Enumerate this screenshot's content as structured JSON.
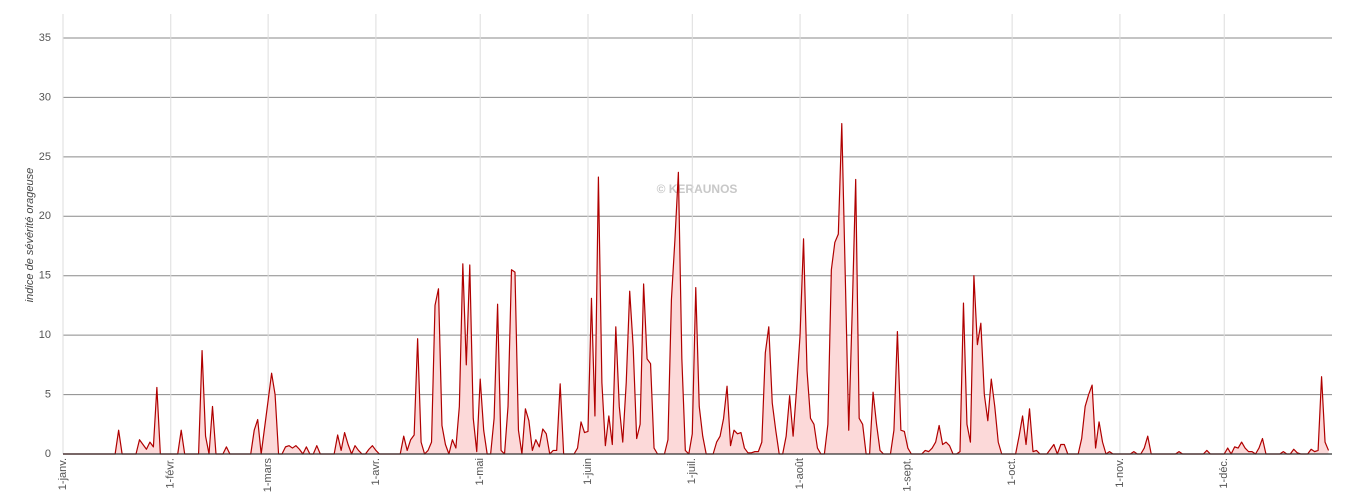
{
  "chart_data": {
    "type": "area",
    "y_label": "indice de sévérité orageuse",
    "watermark": "© KERAUNOS",
    "x": [
      0,
      15,
      16,
      17,
      21,
      22,
      23,
      24,
      25,
      26,
      27,
      28,
      33,
      34,
      35,
      39,
      40,
      41,
      42,
      43,
      44,
      46,
      47,
      48,
      54,
      55,
      56,
      57,
      59,
      60,
      61,
      62,
      63,
      64,
      65,
      66,
      67,
      68,
      69,
      70,
      71,
      72,
      73,
      74,
      78,
      79,
      80,
      81,
      82,
      83,
      84,
      85,
      86,
      87,
      88,
      89,
      90,
      91,
      97,
      98,
      99,
      100,
      101,
      102,
      103,
      104,
      105,
      106,
      107,
      108,
      109,
      110,
      111,
      112,
      113,
      114,
      115,
      116,
      117,
      118,
      119,
      120,
      121,
      122,
      123,
      124,
      125,
      126,
      127,
      128,
      129,
      130,
      131,
      132,
      133,
      134,
      135,
      136,
      137,
      138,
      139,
      140,
      141,
      142,
      143,
      144,
      147,
      148,
      149,
      150,
      151,
      152,
      153,
      154,
      155,
      156,
      157,
      158,
      159,
      160,
      161,
      162,
      163,
      164,
      165,
      166,
      167,
      168,
      169,
      170,
      171,
      173,
      174,
      175,
      176,
      177,
      178,
      179,
      180,
      181,
      182,
      183,
      184,
      185,
      187,
      188,
      189,
      190,
      191,
      192,
      193,
      194,
      195,
      196,
      197,
      198,
      199,
      200,
      201,
      202,
      203,
      204,
      205,
      206,
      207,
      208,
      209,
      210,
      211,
      212,
      213,
      214,
      215,
      216,
      217,
      218,
      219,
      220,
      221,
      222,
      223,
      224,
      225,
      226,
      227,
      228,
      229,
      230,
      231,
      232,
      233,
      234,
      235,
      236,
      238,
      239,
      240,
      241,
      242,
      243,
      244,
      247,
      248,
      249,
      250,
      251,
      252,
      253,
      254,
      255,
      256,
      257,
      258,
      259,
      260,
      261,
      262,
      263,
      264,
      265,
      266,
      267,
      268,
      269,
      270,
      274,
      275,
      276,
      277,
      278,
      279,
      280,
      281,
      283,
      284,
      285,
      286,
      287,
      288,
      289,
      292,
      293,
      294,
      295,
      296,
      297,
      298,
      299,
      300,
      301,
      302,
      307,
      308,
      309,
      310,
      311,
      312,
      313,
      320,
      321,
      322,
      328,
      329,
      330,
      334,
      335,
      336,
      337,
      338,
      339,
      340,
      341,
      342,
      343,
      344,
      345,
      346,
      350,
      351,
      352,
      353,
      354,
      355,
      356,
      358,
      359,
      360,
      361,
      362,
      363,
      364
    ],
    "series": [
      {
        "color": "#b00000",
        "fill": "#fcd9d9",
        "values": [
          0,
          0,
          2,
          0,
          0,
          1.2,
          0.8,
          0.4,
          1,
          0.6,
          5.6,
          0,
          0,
          2,
          0,
          0,
          8.7,
          1.5,
          0,
          4,
          0,
          0,
          0.6,
          0,
          0,
          2,
          2.9,
          0,
          4.5,
          6.8,
          5,
          0,
          0,
          0.6,
          0.7,
          0.5,
          0.7,
          0.4,
          0,
          0.6,
          0,
          0,
          0.7,
          0,
          0,
          1.6,
          0.3,
          1.8,
          0.8,
          0,
          0.7,
          0.3,
          0,
          0,
          0.4,
          0.7,
          0.3,
          0,
          0,
          1.5,
          0.3,
          1.2,
          1.6,
          9.7,
          1,
          0,
          0.3,
          1,
          12.5,
          13.9,
          2.4,
          0.8,
          0,
          1.2,
          0.5,
          4,
          16,
          7.5,
          15.9,
          3,
          0.2,
          6.3,
          2,
          0,
          0,
          3,
          12.6,
          0.3,
          0,
          4,
          15.5,
          15.3,
          2,
          0,
          3.8,
          2.8,
          0.3,
          1.2,
          0.6,
          2.1,
          1.7,
          0,
          0.3,
          0.3,
          5.9,
          0,
          0,
          0.5,
          2.7,
          1.8,
          1.9,
          13.1,
          3.2,
          23.3,
          6,
          0.7,
          3.2,
          0.8,
          10.7,
          4,
          1,
          6,
          13.7,
          9,
          1.3,
          2.5,
          14.3,
          8,
          7.6,
          0.5,
          0,
          0,
          1.2,
          13,
          18,
          23.7,
          8,
          0.3,
          0,
          1.7,
          14,
          4,
          1.5,
          0,
          0,
          1,
          1.5,
          3,
          5.7,
          0.7,
          2,
          1.7,
          1.8,
          0.5,
          0.1,
          0.1,
          0.2,
          0.2,
          1,
          8.5,
          10.7,
          4.3,
          2,
          0,
          0,
          1.5,
          4.9,
          1.5,
          5.5,
          10,
          18.1,
          7,
          3,
          2.5,
          0.5,
          0,
          0,
          2.5,
          15.5,
          17.8,
          18.5,
          27.8,
          15,
          2,
          12,
          23.1,
          3,
          2.5,
          0,
          0,
          5.2,
          2.5,
          0.3,
          0,
          0,
          2,
          10.3,
          2,
          1.9,
          0.5,
          0,
          0,
          0.3,
          0.2,
          0.5,
          1,
          2.4,
          0.8,
          1,
          0.7,
          0,
          0,
          0.2,
          12.7,
          2.5,
          1,
          15,
          9.2,
          11,
          5,
          2.8,
          6.3,
          4,
          1,
          0,
          0,
          1.5,
          3.2,
          0.8,
          3.8,
          0.2,
          0.3,
          0,
          0,
          0.4,
          0.8,
          0,
          0.8,
          0.8,
          0,
          0,
          1.3,
          4,
          5,
          5.8,
          0.5,
          2.7,
          1,
          0,
          0.2,
          0,
          0,
          0.2,
          0,
          0,
          0.5,
          1.5,
          0,
          0,
          0.2,
          0,
          0,
          0.3,
          0,
          0,
          0.5,
          0,
          0.6,
          0.5,
          1,
          0.5,
          0.2,
          0.2,
          0,
          0.5,
          1.3,
          0,
          0,
          0.2,
          0,
          0,
          0.4,
          0.1,
          0,
          0,
          0.4,
          0.2,
          0.3,
          6.5,
          1,
          0.3
        ]
      }
    ],
    "xlim": [
      0,
      365
    ],
    "xticks": [
      {
        "value": 0,
        "label": "1-janv."
      },
      {
        "value": 31,
        "label": "1-févr."
      },
      {
        "value": 59,
        "label": "1-mars"
      },
      {
        "value": 90,
        "label": "1-avr."
      },
      {
        "value": 120,
        "label": "1-mai"
      },
      {
        "value": 151,
        "label": "1-juin"
      },
      {
        "value": 181,
        "label": "1-juil."
      },
      {
        "value": 212,
        "label": "1-août"
      },
      {
        "value": 243,
        "label": "1-sept."
      },
      {
        "value": 273,
        "label": "1-oct."
      },
      {
        "value": 304,
        "label": "1-nov."
      },
      {
        "value": 334,
        "label": "1-déc."
      }
    ],
    "ylim": [
      0,
      35
    ],
    "yticks": [
      0,
      5,
      10,
      15,
      20,
      25,
      30,
      35
    ],
    "grid": true
  }
}
